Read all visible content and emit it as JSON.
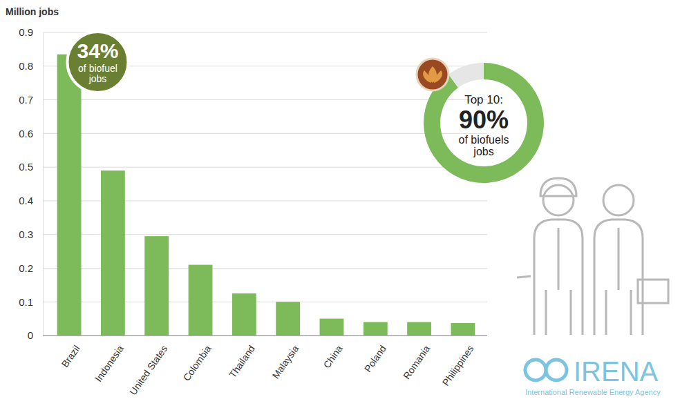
{
  "chart_data": {
    "type": "bar",
    "y_label": "Million jobs",
    "categories": [
      "Brazil",
      "Indonesia",
      "United States",
      "Colombia",
      "Thailand",
      "Malaysia",
      "China",
      "Poland",
      "Romania",
      "Philippines"
    ],
    "values": [
      0.835,
      0.49,
      0.295,
      0.21,
      0.125,
      0.1,
      0.05,
      0.04,
      0.04,
      0.037
    ],
    "color": "#7dbb5a",
    "ylim": [
      0,
      0.9
    ],
    "yticks": [
      0,
      0.1,
      0.2,
      0.3,
      0.4,
      0.5,
      0.6,
      0.7,
      0.8,
      0.9
    ],
    "grid": true,
    "annotations": [
      {
        "value": 34,
        "label": "34%",
        "text": "of biofuel jobs",
        "color": "#6b7f32"
      }
    ],
    "donut": {
      "title": "Top 10:",
      "value": 90,
      "label": "90%",
      "text": "of biofuels jobs",
      "colors": [
        "#7dbb5a",
        "#e6e6e6"
      ]
    },
    "source": {
      "name": "IRENA",
      "full_name": "International Renewable Energy Agency"
    }
  }
}
